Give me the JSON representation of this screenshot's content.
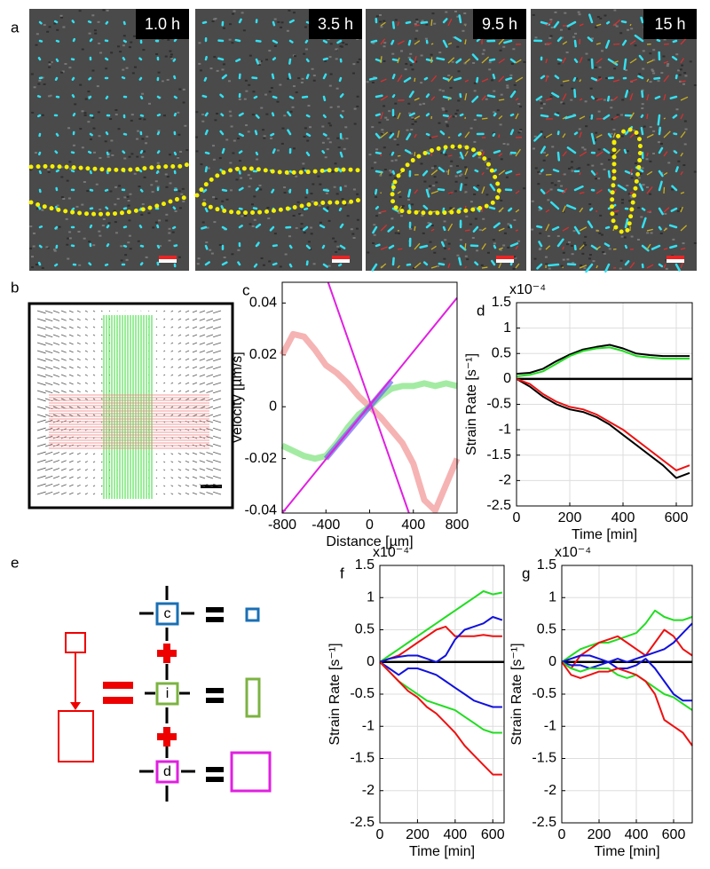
{
  "panels": {
    "a": {
      "label": "a",
      "times": [
        "1.0 h",
        "3.5 h",
        "9.5 h",
        "15 h"
      ]
    },
    "b": {
      "label": "b"
    },
    "e": {
      "label": "e",
      "boxes": [
        "c",
        "i",
        "d"
      ]
    }
  },
  "chart_data": [
    {
      "type": "line",
      "panel_label": "c",
      "xlabel": "Distance [µm]",
      "ylabel": "Velocity [µm/s]",
      "xlim": [
        -800,
        800
      ],
      "ylim": [
        -0.041,
        0.048
      ],
      "xticks": [
        -800,
        -400,
        0,
        400,
        800
      ],
      "yticks": [
        0.04,
        0.02,
        0,
        -0.02,
        -0.04
      ],
      "x": [
        -800,
        -700,
        -600,
        -500,
        -400,
        -300,
        -200,
        -100,
        0,
        100,
        200,
        300,
        400,
        500,
        600,
        700,
        800
      ],
      "series": [
        {
          "color": "#f08080",
          "values": [
            0.02,
            0.028,
            0.027,
            0.022,
            0.016,
            0.013,
            0.009,
            0.004,
            0,
            -0.004,
            -0.009,
            -0.014,
            -0.022,
            -0.036,
            -0.04,
            -0.03,
            -0.02
          ]
        },
        {
          "color": "#66dd66",
          "values": [
            -0.015,
            -0.017,
            -0.019,
            -0.02,
            -0.019,
            -0.014,
            -0.008,
            -0.003,
            0,
            0.004,
            0.007,
            0.008,
            0.008,
            0.009,
            0.008,
            0.009,
            0.008
          ]
        },
        {
          "color": "#6666ee",
          "values": [
            null,
            null,
            null,
            null,
            -0.02,
            -0.015,
            -0.01,
            -0.005,
            0,
            0.005,
            0.01,
            null,
            null,
            null,
            null,
            null,
            null
          ]
        },
        {
          "color": "#e020e0",
          "x": [
            -800,
            800
          ],
          "values": [
            -0.041,
            0.042
          ]
        },
        {
          "color": "#e020e0",
          "x": [
            -380,
            360
          ],
          "values": [
            0.048,
            -0.041
          ]
        }
      ]
    },
    {
      "type": "line",
      "panel_label": "d",
      "xlabel": "Time [min]",
      "ylabel": "Strain Rate [s⁻¹]",
      "multiplier": "x10⁻⁴",
      "grid": true,
      "zero_line": true,
      "xlim": [
        0,
        660
      ],
      "ylim": [
        -2.5,
        1.5
      ],
      "xticks": [
        0,
        200,
        400,
        600
      ],
      "yticks": [
        1.5,
        1,
        0.5,
        0,
        -0.5,
        -1,
        -1.5,
        -2,
        -2.5
      ],
      "x": [
        0,
        50,
        100,
        150,
        200,
        250,
        300,
        350,
        400,
        450,
        500,
        550,
        600,
        650
      ],
      "series": [
        {
          "color": "#000000",
          "values": [
            0.1,
            0.12,
            0.2,
            0.35,
            0.48,
            0.58,
            0.63,
            0.67,
            0.6,
            0.5,
            0.47,
            0.45,
            0.45,
            0.45
          ]
        },
        {
          "color": "#000000",
          "values": [
            0,
            -0.15,
            -0.35,
            -0.5,
            -0.6,
            -0.65,
            -0.75,
            -0.9,
            -1.1,
            -1.3,
            -1.5,
            -1.7,
            -1.95,
            -1.85
          ]
        },
        {
          "color": "#22dd22",
          "values": [
            0.05,
            0.08,
            0.15,
            0.3,
            0.45,
            0.55,
            0.6,
            0.62,
            0.55,
            0.45,
            0.42,
            0.4,
            0.4,
            0.4
          ]
        },
        {
          "color": "#ee1111",
          "values": [
            0,
            -0.1,
            -0.3,
            -0.45,
            -0.55,
            -0.6,
            -0.7,
            -0.85,
            -1.0,
            -1.2,
            -1.4,
            -1.6,
            -1.8,
            -1.7
          ]
        }
      ]
    },
    {
      "type": "line",
      "panel_label": "f",
      "xlabel": "Time [min]",
      "ylabel": "Strain Rate [s⁻¹]",
      "multiplier": "x10⁻⁴",
      "grid": true,
      "zero_line": true,
      "xlim": [
        0,
        660
      ],
      "ylim": [
        -2.5,
        1.5
      ],
      "xticks": [
        0,
        200,
        400,
        600
      ],
      "yticks": [
        1.5,
        1,
        0.5,
        0,
        -0.5,
        -1,
        -1.5,
        -2,
        -2.5
      ],
      "x": [
        0,
        50,
        100,
        150,
        200,
        250,
        300,
        350,
        400,
        450,
        500,
        550,
        600,
        650
      ],
      "series": [
        {
          "color": "#22dd22",
          "values": [
            0,
            0.1,
            0.2,
            0.3,
            0.4,
            0.5,
            0.6,
            0.7,
            0.8,
            0.9,
            1.0,
            1.1,
            1.05,
            1.08
          ]
        },
        {
          "color": "#ee1111",
          "values": [
            0,
            0.05,
            0.1,
            0.2,
            0.3,
            0.4,
            0.5,
            0.55,
            0.4,
            0.4,
            0.4,
            0.42,
            0.4,
            0.4
          ]
        },
        {
          "color": "#1111dd",
          "values": [
            0,
            0.05,
            0.08,
            0.1,
            0.1,
            0.05,
            0,
            0.1,
            0.35,
            0.5,
            0.55,
            0.6,
            0.7,
            0.65
          ]
        },
        {
          "color": "#1111dd",
          "values": [
            0,
            -0.1,
            -0.2,
            -0.1,
            -0.1,
            -0.15,
            -0.2,
            -0.3,
            -0.4,
            -0.5,
            -0.6,
            -0.65,
            -0.7,
            -0.7
          ]
        },
        {
          "color": "#22dd22",
          "values": [
            0,
            -0.15,
            -0.3,
            -0.4,
            -0.5,
            -0.6,
            -0.65,
            -0.7,
            -0.75,
            -0.85,
            -0.95,
            -1.05,
            -1.1,
            -1.1
          ]
        },
        {
          "color": "#ee1111",
          "values": [
            0,
            -0.15,
            -0.3,
            -0.45,
            -0.55,
            -0.7,
            -0.8,
            -0.95,
            -1.1,
            -1.3,
            -1.45,
            -1.6,
            -1.75,
            -1.75
          ]
        }
      ]
    },
    {
      "type": "line",
      "panel_label": "g",
      "xlabel": "Time [min]",
      "ylabel": "Strain Rate [s⁻¹]",
      "multiplier": "x10⁻⁴",
      "grid": true,
      "zero_line": true,
      "xlim": [
        0,
        700
      ],
      "ylim": [
        -2.5,
        1.5
      ],
      "xticks": [
        0,
        200,
        400,
        600
      ],
      "yticks": [
        1.5,
        1,
        0.5,
        0,
        -0.5,
        -1,
        -1.5,
        -2,
        -2.5
      ],
      "x": [
        0,
        50,
        100,
        150,
        200,
        250,
        300,
        350,
        400,
        450,
        500,
        550,
        600,
        650,
        700
      ],
      "series": [
        {
          "color": "#22dd22",
          "values": [
            0,
            0.1,
            0.2,
            0.25,
            0.3,
            0.3,
            0.35,
            0.4,
            0.45,
            0.6,
            0.8,
            0.7,
            0.65,
            0.65,
            0.7
          ]
        },
        {
          "color": "#ee1111",
          "values": [
            0,
            -0.1,
            0.1,
            0.2,
            0.3,
            0.35,
            0.4,
            0.3,
            0.2,
            0.1,
            0.3,
            0.5,
            0.4,
            0.2,
            0.1
          ]
        },
        {
          "color": "#1111dd",
          "values": [
            0,
            0.05,
            0.1,
            0.1,
            0.05,
            0,
            0.05,
            0,
            0.05,
            0.1,
            0.15,
            0.2,
            0.3,
            0.45,
            0.6
          ]
        },
        {
          "color": "#1111dd",
          "values": [
            0,
            -0.05,
            -0.05,
            -0.1,
            -0.05,
            0,
            -0.1,
            -0.1,
            -0.05,
            0.05,
            -0.1,
            -0.3,
            -0.5,
            -0.6,
            -0.6
          ]
        },
        {
          "color": "#22dd22",
          "values": [
            0,
            -0.1,
            -0.15,
            -0.1,
            -0.1,
            -0.1,
            -0.2,
            -0.25,
            -0.2,
            -0.3,
            -0.4,
            -0.5,
            -0.55,
            -0.65,
            -0.75
          ]
        },
        {
          "color": "#ee1111",
          "values": [
            0,
            -0.2,
            -0.25,
            -0.2,
            -0.15,
            -0.15,
            -0.1,
            -0.15,
            -0.2,
            -0.3,
            -0.5,
            -0.9,
            -1.0,
            -1.1,
            -1.3
          ]
        }
      ]
    }
  ]
}
